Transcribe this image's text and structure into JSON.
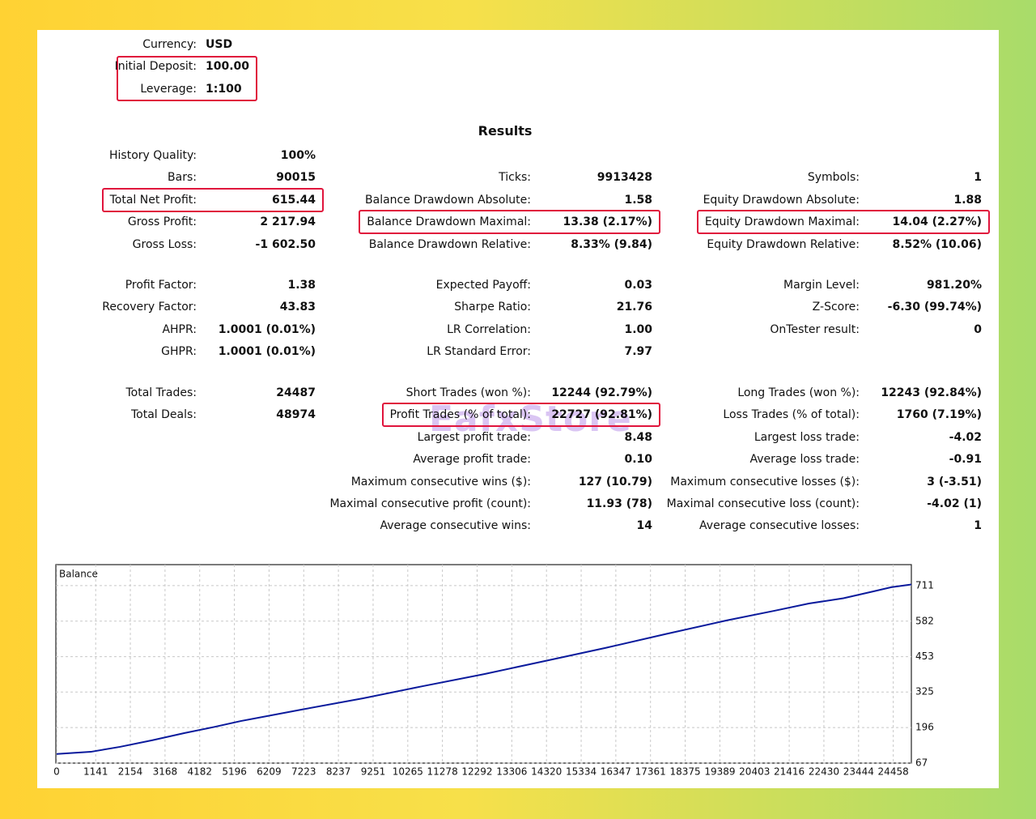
{
  "header": {
    "items": [
      {
        "label": "Currency:",
        "value": "USD"
      },
      {
        "label": "Initial Deposit:",
        "value": "100.00"
      },
      {
        "label": "Leverage:",
        "value": "1:100"
      }
    ]
  },
  "results": {
    "title": "Results",
    "sections": [
      {
        "rows": [
          {
            "left": {
              "label": "History Quality:",
              "value": "100%"
            }
          },
          {
            "left": {
              "label": "Bars:",
              "value": "90015"
            },
            "middle": {
              "label": "Ticks:",
              "value": "9913428"
            },
            "right": {
              "label": "Symbols:",
              "value": "1"
            }
          },
          {
            "left": {
              "label": "Total Net Profit:",
              "value": "615.44",
              "highlight": true
            },
            "middle": {
              "label": "Balance Drawdown Absolute:",
              "value": "1.58"
            },
            "right": {
              "label": "Equity Drawdown Absolute:",
              "value": "1.88"
            }
          },
          {
            "left": {
              "label": "Gross Profit:",
              "value": "2 217.94"
            },
            "middle": {
              "label": "Balance Drawdown Maximal:",
              "value": "13.38 (2.17%)",
              "highlight": true
            },
            "right": {
              "label": "Equity Drawdown Maximal:",
              "value": "14.04 (2.27%)",
              "highlight": true
            }
          },
          {
            "left": {
              "label": "Gross Loss:",
              "value": "-1 602.50"
            },
            "middle": {
              "label": "Balance Drawdown Relative:",
              "value": "8.33% (9.84)"
            },
            "right": {
              "label": "Equity Drawdown Relative:",
              "value": "8.52% (10.06)"
            }
          }
        ]
      },
      {
        "rows": [
          {
            "left": {
              "label": "Profit Factor:",
              "value": "1.38"
            },
            "middle": {
              "label": "Expected Payoff:",
              "value": "0.03"
            },
            "right": {
              "label": "Margin Level:",
              "value": "981.20%"
            }
          },
          {
            "left": {
              "label": "Recovery Factor:",
              "value": "43.83"
            },
            "middle": {
              "label": "Sharpe Ratio:",
              "value": "21.76"
            },
            "right": {
              "label": "Z-Score:",
              "value": "-6.30 (99.74%)"
            }
          },
          {
            "left": {
              "label": "AHPR:",
              "value": "1.0001 (0.01%)"
            },
            "middle": {
              "label": "LR Correlation:",
              "value": "1.00"
            },
            "right": {
              "label": "OnTester result:",
              "value": "0"
            }
          },
          {
            "left": {
              "label": "GHPR:",
              "value": "1.0001 (0.01%)"
            },
            "middle": {
              "label": "LR Standard Error:",
              "value": "7.97"
            }
          }
        ]
      },
      {
        "rows": [
          {
            "left": {
              "label": "Total Trades:",
              "value": "24487"
            },
            "middle": {
              "label": "Short Trades (won %):",
              "value": "12244 (92.79%)"
            },
            "right": {
              "label": "Long Trades (won %):",
              "value": "12243 (92.84%)"
            }
          },
          {
            "left": {
              "label": "Total Deals:",
              "value": "48974"
            },
            "middle": {
              "label": "Profit Trades (% of total):",
              "value": "22727 (92.81%)",
              "highlight": true
            },
            "right": {
              "label": "Loss Trades (% of total):",
              "value": "1760 (7.19%)"
            }
          },
          {
            "middle": {
              "label": "Largest profit trade:",
              "value": "8.48"
            },
            "right": {
              "label": "Largest loss trade:",
              "value": "-4.02"
            }
          },
          {
            "middle": {
              "label": "Average profit trade:",
              "value": "0.10"
            },
            "right": {
              "label": "Average loss trade:",
              "value": "-0.91"
            }
          },
          {
            "middle": {
              "label": "Maximum consecutive wins ($):",
              "value": "127 (10.79)"
            },
            "right": {
              "label": "Maximum consecutive losses ($):",
              "value": "3 (-3.51)"
            }
          },
          {
            "middle": {
              "label": "Maximal consecutive profit (count):",
              "value": "11.93 (78)"
            },
            "right": {
              "label": "Maximal consecutive loss (count):",
              "value": "-4.02 (1)"
            }
          },
          {
            "middle": {
              "label": "Average consecutive wins:",
              "value": "14"
            },
            "right": {
              "label": "Average consecutive losses:",
              "value": "1"
            }
          }
        ]
      }
    ]
  },
  "watermark": "EafxStore",
  "chart_data": {
    "type": "line",
    "title": "Balance",
    "x": [
      0,
      1000,
      1850,
      2800,
      3740,
      4600,
      5400,
      7200,
      8960,
      10700,
      12500,
      14300,
      16050,
      17800,
      19600,
      21000,
      21990,
      23000,
      23880,
      24400,
      24987
    ],
    "series": [
      {
        "name": "Balance",
        "color": "#0a1a9c",
        "values": [
          100,
          108,
          126,
          150,
          176,
          198,
          220,
          262,
          302,
          346,
          390,
          438,
          485,
          535,
          585,
          620,
          646,
          665,
          690,
          705,
          715
        ]
      }
    ],
    "xlim": [
      0,
      24987
    ],
    "ylim": [
      67,
      787
    ],
    "xticks": [
      0,
      1141,
      2154,
      3168,
      4182,
      5196,
      6209,
      7223,
      8237,
      9251,
      10265,
      11278,
      12292,
      13306,
      14320,
      15334,
      16347,
      17361,
      18375,
      19389,
      20403,
      21416,
      22430,
      23444,
      24458
    ],
    "yticks": [
      67,
      196,
      325,
      453,
      582,
      711
    ],
    "grid": true
  }
}
